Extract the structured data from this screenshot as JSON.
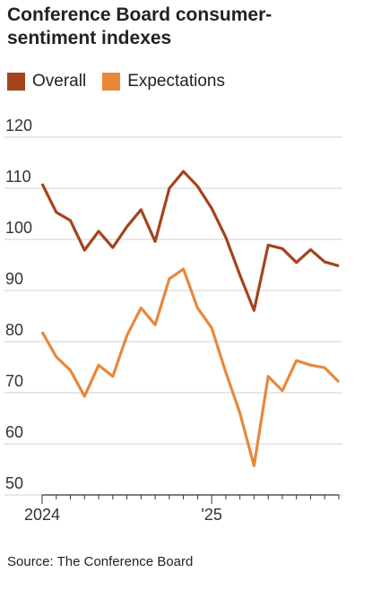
{
  "chart_data": {
    "type": "line",
    "title": "Conference Board consumer-sentiment indexes",
    "categories": [
      "2024",
      null,
      null,
      null,
      null,
      null,
      null,
      null,
      null,
      null,
      null,
      null,
      "'25",
      null,
      null,
      null,
      null,
      null,
      null,
      null,
      null,
      null
    ],
    "series": [
      {
        "name": "Overall",
        "color": "#a3441c",
        "values": [
          110.9,
          105.3,
          103.7,
          97.9,
          101.6,
          98.4,
          102.5,
          105.8,
          99.6,
          110.0,
          113.3,
          110.4,
          106.1,
          100.4,
          93.0,
          86.1,
          98.9,
          98.2,
          95.5,
          98.0,
          95.6,
          94.8
        ]
      },
      {
        "name": "Expectations",
        "color": "#e8883a",
        "values": [
          81.9,
          77.0,
          74.4,
          69.3,
          75.4,
          73.2,
          81.2,
          86.6,
          83.3,
          92.3,
          94.2,
          86.6,
          82.7,
          74.0,
          66.0,
          55.7,
          73.2,
          70.4,
          76.3,
          75.4,
          74.9,
          72.1
        ]
      }
    ],
    "ylim": [
      50,
      122
    ],
    "yticks": [
      50,
      60,
      70,
      80,
      90,
      100,
      110,
      120
    ],
    "grid": true,
    "source": "Source: The Conference Board"
  }
}
